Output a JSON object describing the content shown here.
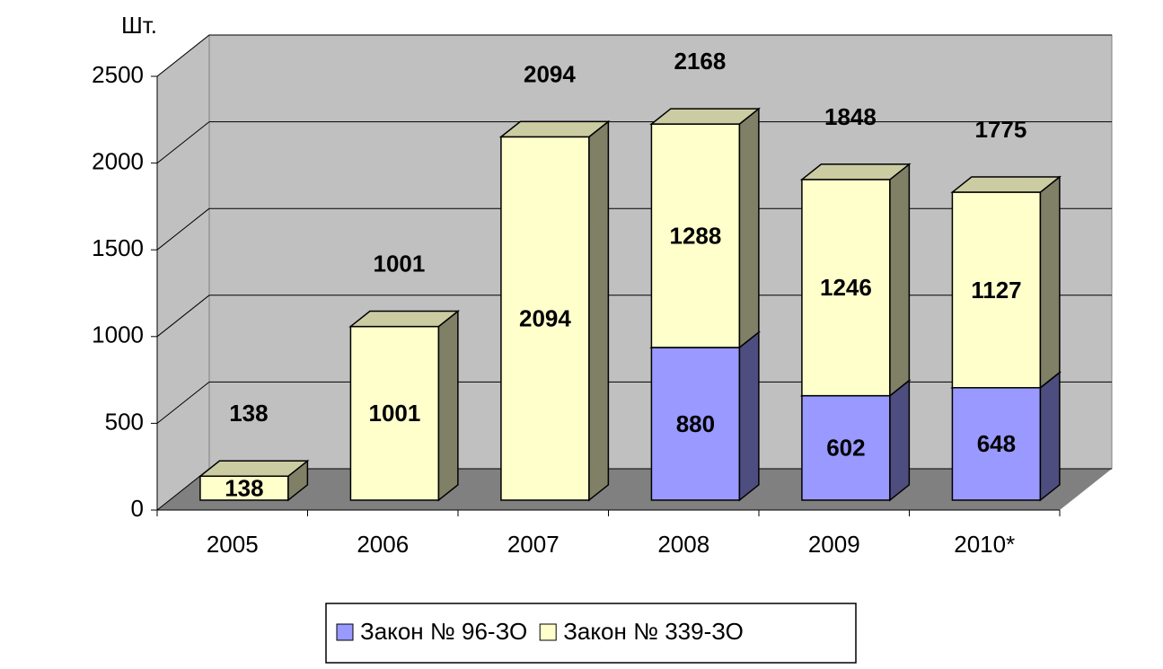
{
  "chart_data": {
    "type": "bar3d_stacked",
    "unit_label": "Шт.",
    "categories": [
      "2005",
      "2006",
      "2007",
      "2008",
      "2009",
      "2010*"
    ],
    "series": [
      {
        "name": "Закон № 96-ЗО",
        "color": "#9999ff",
        "values": [
          null,
          null,
          null,
          880,
          602,
          648
        ]
      },
      {
        "name": "Закон № 339-ЗО",
        "color": "#ffffcc",
        "values": [
          138,
          1001,
          2094,
          1288,
          1246,
          1127
        ]
      }
    ],
    "totals": [
      138,
      1001,
      2094,
      2168,
      1848,
      1775
    ],
    "ylim": [
      0,
      2500
    ],
    "yticks": [
      0,
      500,
      1000,
      1500,
      2000,
      2500
    ],
    "grid": true,
    "legend": "bottom"
  }
}
